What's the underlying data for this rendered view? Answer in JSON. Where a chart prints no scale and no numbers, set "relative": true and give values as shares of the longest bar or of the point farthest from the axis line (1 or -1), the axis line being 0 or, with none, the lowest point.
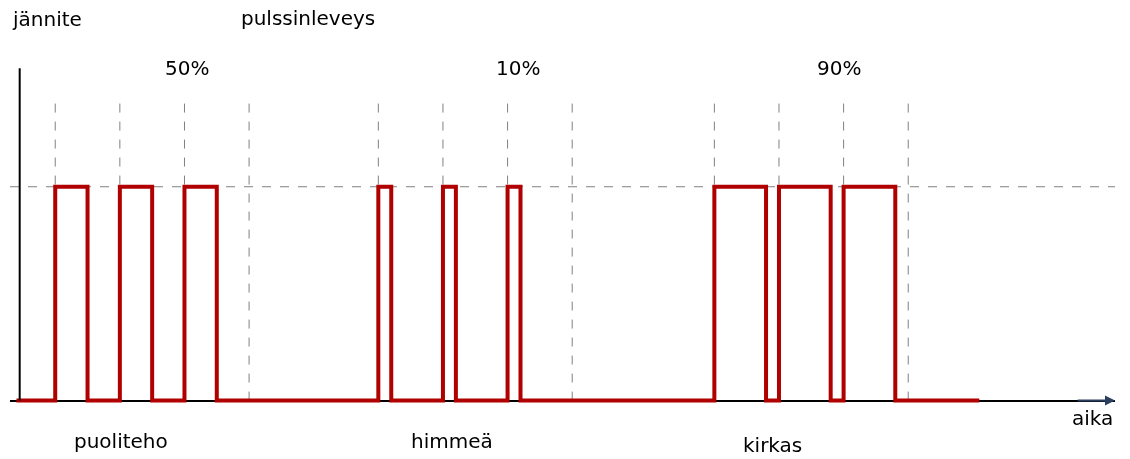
{
  "chart_data": {
    "type": "step",
    "relative": true,
    "xlabel": "aika",
    "categories": [
      null,
      null,
      null,
      null,
      null,
      null,
      null,
      null,
      null,
      null,
      null,
      null,
      null,
      null,
      null,
      null,
      null,
      null,
      null,
      null,
      null,
      null,
      null,
      null,
      null,
      null,
      null,
      null,
      null,
      null,
      null,
      null,
      null,
      null,
      null,
      null,
      null,
      null,
      null,
      null,
      null,
      null,
      null,
      null,
      null,
      null,
      null,
      null,
      null,
      null,
      null,
      null,
      null,
      null,
      null,
      null,
      null,
      null,
      null,
      null,
      null,
      null,
      null,
      null,
      null,
      null,
      null,
      null,
      null,
      null,
      null,
      null,
      null,
      null,
      null,
      null,
      null,
      null,
      null,
      null,
      null,
      null,
      null,
      null,
      null,
      null,
      null,
      null,
      null,
      null,
      null,
      null,
      null,
      null,
      null,
      null,
      null,
      null,
      null,
      null,
      null,
      null,
      null,
      null,
      null,
      null,
      null,
      null,
      null,
      null,
      null,
      null,
      null,
      null,
      null,
      null,
      null,
      null,
      null,
      null,
      null,
      null,
      null,
      null,
      null,
      null,
      null,
      null,
      null,
      null,
      null,
      null,
      null,
      null,
      null,
      null,
      null,
      null,
      null,
      null,
      null,
      null,
      null,
      null,
      null,
      null,
      null,
      null,
      null,
      null
    ],
    "series": [
      {
        "color": "#b00000",
        "values": [
          0,
          0,
          0,
          0,
          0,
          0,
          1,
          1,
          1,
          1,
          1,
          0,
          0,
          0,
          0,
          0,
          1,
          1,
          1,
          1,
          1,
          0,
          0,
          0,
          0,
          0,
          1,
          1,
          1,
          1,
          1,
          0,
          0,
          0,
          0,
          0,
          0,
          0,
          0,
          0,
          0,
          0,
          0,
          0,
          0,
          0,
          0,
          0,
          0,
          0,
          0,
          0,
          0,
          0,
          0,
          0,
          1,
          1,
          0,
          0,
          0,
          0,
          0,
          0,
          0,
          0,
          1,
          1,
          0,
          0,
          0,
          0,
          0,
          0,
          0,
          0,
          1,
          1,
          0,
          0,
          0,
          0,
          0,
          0,
          0,
          0,
          0,
          0,
          0,
          0,
          0,
          0,
          0,
          0,
          0,
          0,
          0,
          0,
          0,
          0,
          0,
          0,
          0,
          0,
          0,
          0,
          0,
          0,
          1,
          1,
          1,
          1,
          1,
          1,
          1,
          1,
          0,
          0,
          1,
          1,
          1,
          1,
          1,
          1,
          1,
          1,
          0,
          0,
          1,
          1,
          1,
          1,
          1,
          1,
          1,
          1,
          0,
          0,
          0,
          0,
          0,
          0,
          0,
          0,
          0,
          0,
          0,
          0,
          0,
          0
        ]
      }
    ],
    "annotations": [
      "jännite",
      "pulssinleveys",
      "50%",
      "10%",
      "90%",
      "puoliteho",
      "himmeä",
      "kirkas"
    ],
    "legend": false,
    "tick_labels": false,
    "marker": "none",
    "line_style": "solid"
  }
}
